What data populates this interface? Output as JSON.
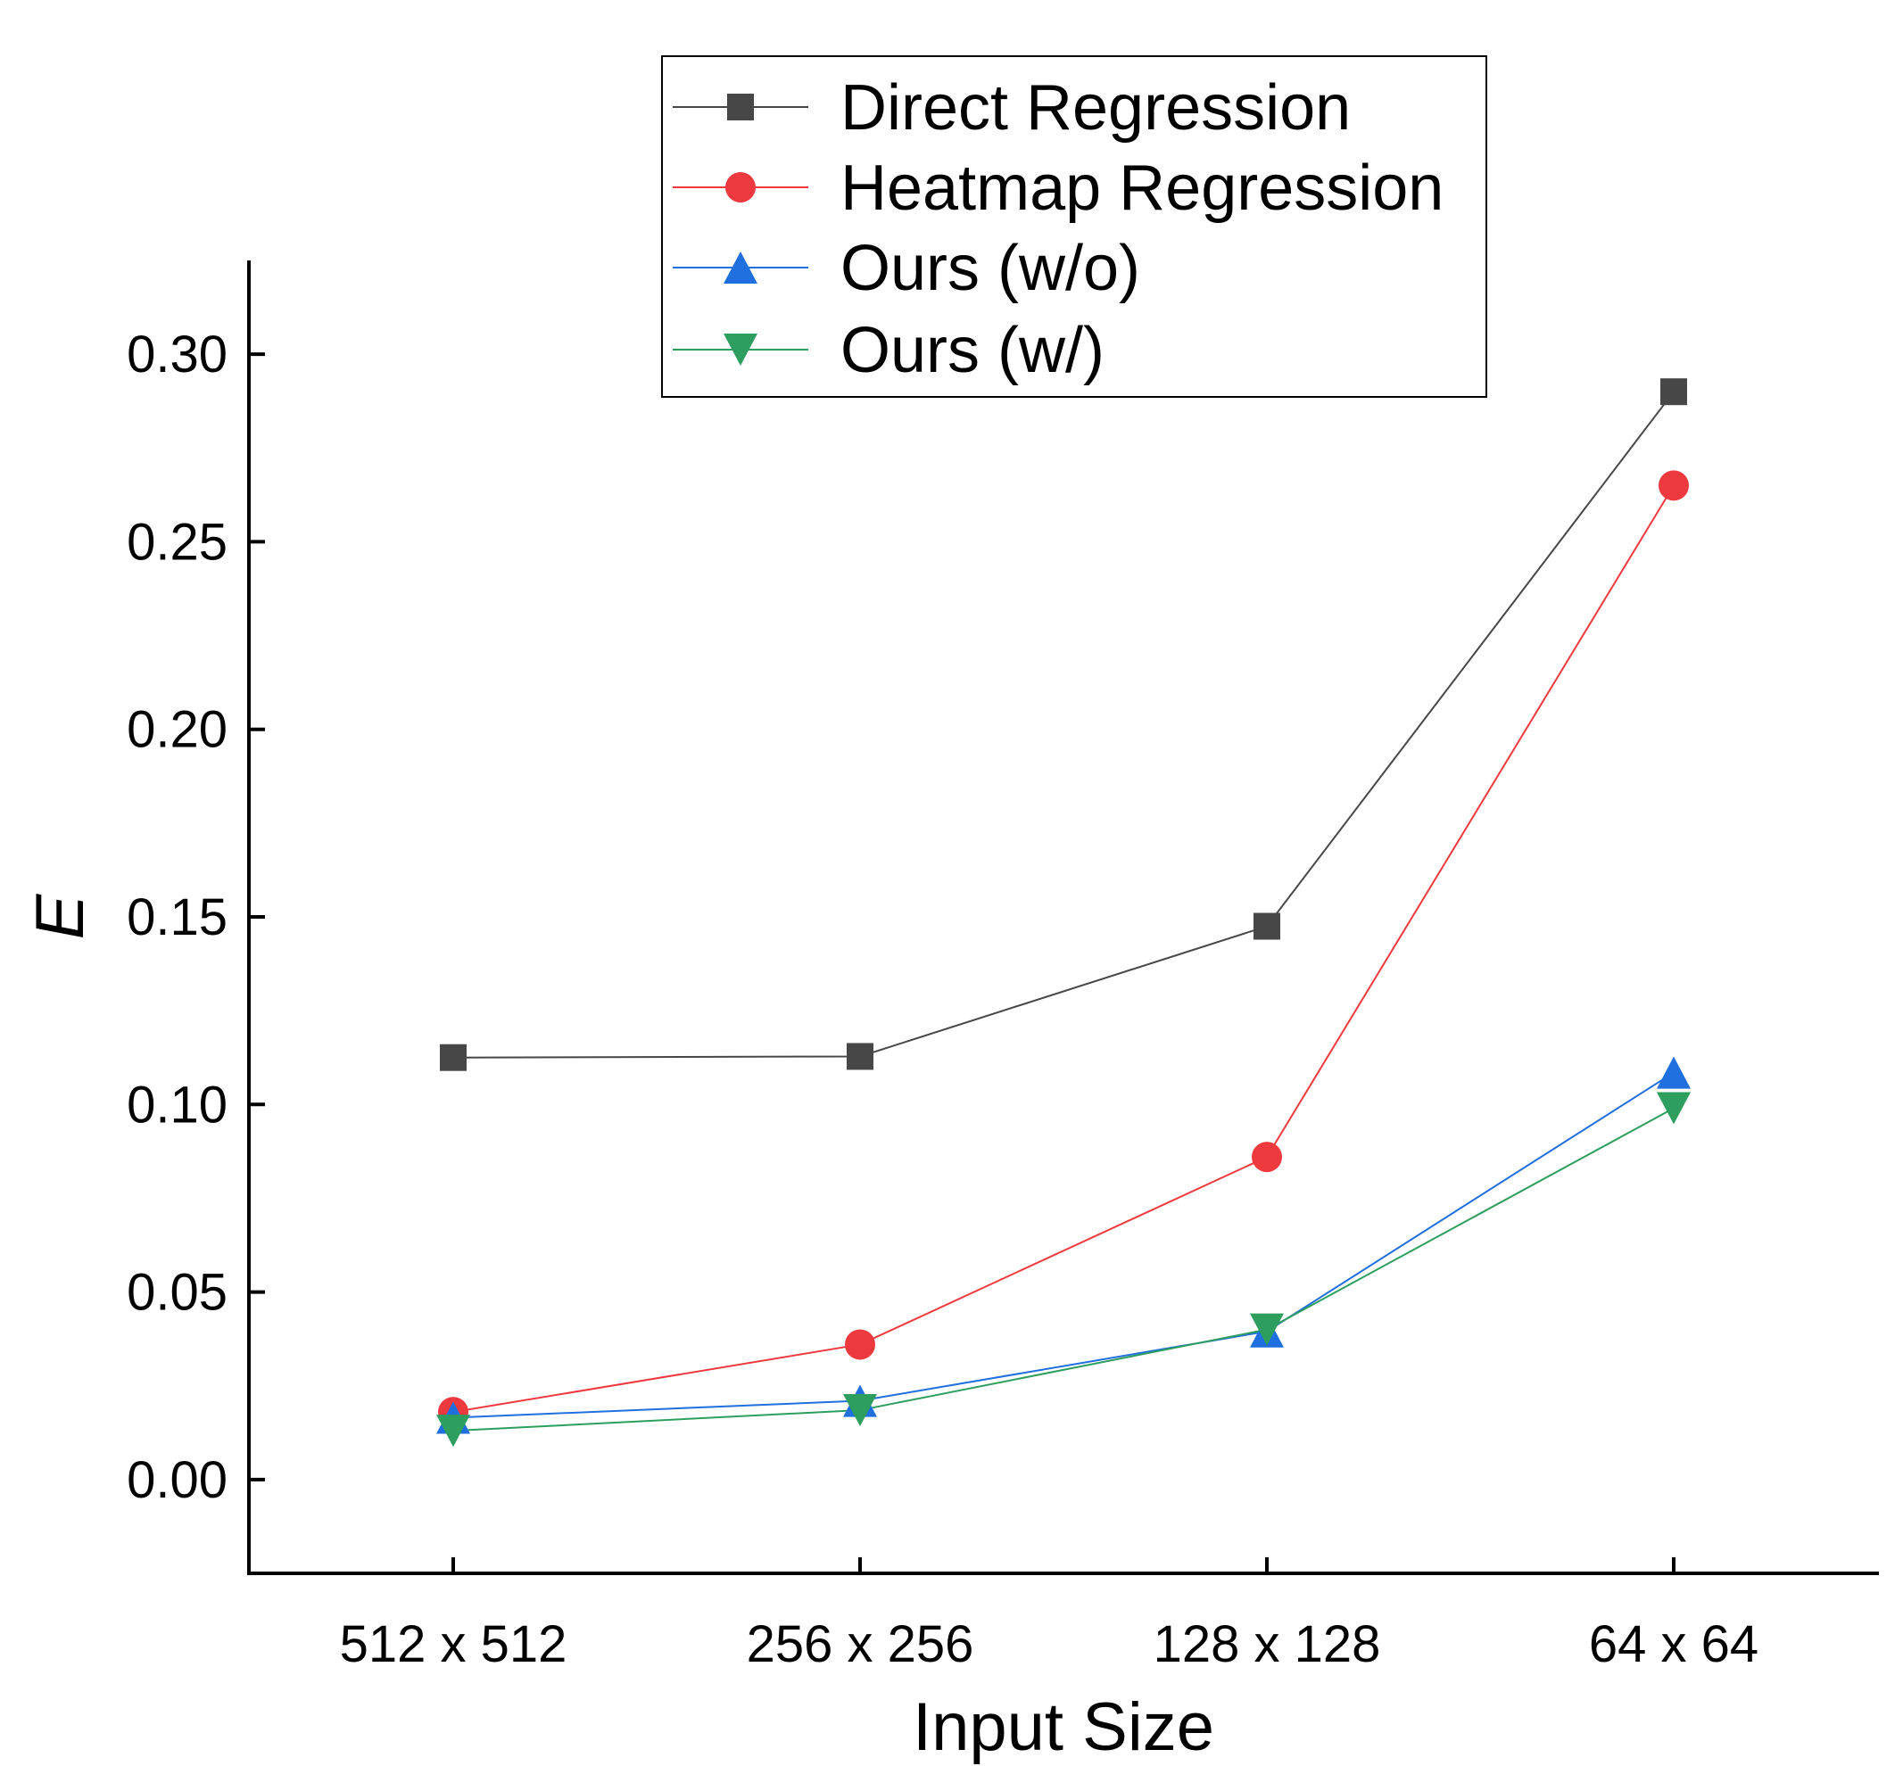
{
  "chart_data": {
    "type": "line",
    "title": "",
    "xlabel": "Input Size",
    "ylabel": "E",
    "categories": [
      "512 x 512",
      "256 x 256",
      "128 x 128",
      "64 x 64"
    ],
    "ylim": [
      -0.025,
      0.325
    ],
    "yticks": [
      "0.00",
      "0.05",
      "0.10",
      "0.15",
      "0.20",
      "0.25",
      "0.30"
    ],
    "grid": false,
    "legend_position": "top-center",
    "series": [
      {
        "name": "Direct Regression",
        "marker": "square",
        "color": "#474747",
        "line_color": "#474747",
        "values": [
          0.1125,
          0.1128,
          0.1475,
          0.29
        ]
      },
      {
        "name": "Heatmap Regression",
        "marker": "circle",
        "color": "#ee3a3e",
        "line_color": "#ee3a3e",
        "values": [
          0.018,
          0.036,
          0.086,
          0.265
        ]
      },
      {
        "name": "Ours (w/o)",
        "marker": "triangle-up",
        "color": "#1f6fde",
        "line_color": "#1f6fde",
        "values": [
          0.0165,
          0.021,
          0.0395,
          0.1085
        ]
      },
      {
        "name": "Ours (w/)",
        "marker": "triangle-down",
        "color": "#2e9e5e",
        "line_color": "#2e9e5e",
        "values": [
          0.013,
          0.0185,
          0.04,
          0.099
        ]
      }
    ]
  }
}
